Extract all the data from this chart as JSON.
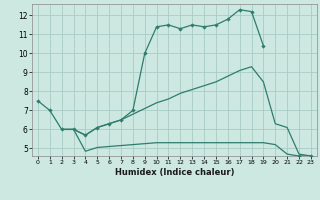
{
  "xlabel": "Humidex (Indice chaleur)",
  "xlim": [
    -0.5,
    23.5
  ],
  "ylim": [
    4.6,
    12.6
  ],
  "yticks": [
    5,
    6,
    7,
    8,
    9,
    10,
    11,
    12
  ],
  "xticks": [
    0,
    1,
    2,
    3,
    4,
    5,
    6,
    7,
    8,
    9,
    10,
    11,
    12,
    13,
    14,
    15,
    16,
    17,
    18,
    19,
    20,
    21,
    22,
    23
  ],
  "bg_color": "#cce8e0",
  "grid_color": "#aaccC4",
  "line_color": "#2e7d6e",
  "curve1_x": [
    0,
    1,
    2,
    3,
    4,
    5,
    6,
    7,
    8,
    9,
    10,
    11,
    12,
    13,
    14,
    15,
    16,
    17,
    18,
    19
  ],
  "curve1_y": [
    7.5,
    7.0,
    6.0,
    6.0,
    5.7,
    6.1,
    6.3,
    6.5,
    7.0,
    10.0,
    11.4,
    11.5,
    11.3,
    11.5,
    11.4,
    11.5,
    11.8,
    12.3,
    12.2,
    10.4
  ],
  "curve2_x": [
    2,
    3,
    4,
    5,
    6,
    7,
    8,
    9,
    10,
    11,
    12,
    13,
    14,
    15,
    16,
    17,
    18,
    19,
    20,
    21,
    22,
    23
  ],
  "curve2_y": [
    6.0,
    6.0,
    5.7,
    6.1,
    6.3,
    6.5,
    6.8,
    7.1,
    7.4,
    7.6,
    7.9,
    8.1,
    8.3,
    8.5,
    8.8,
    9.1,
    9.3,
    8.5,
    6.3,
    6.1,
    4.7,
    4.6
  ],
  "curve3_x": [
    2,
    3,
    4,
    5,
    6,
    7,
    8,
    9,
    10,
    11,
    12,
    13,
    14,
    15,
    16,
    17,
    18,
    19,
    20,
    21,
    22,
    23
  ],
  "curve3_y": [
    6.0,
    6.0,
    4.85,
    5.05,
    5.1,
    5.15,
    5.2,
    5.25,
    5.3,
    5.3,
    5.3,
    5.3,
    5.3,
    5.3,
    5.3,
    5.3,
    5.3,
    5.3,
    5.2,
    4.7,
    4.6,
    4.6
  ],
  "marker_x": [
    0,
    1,
    2,
    3,
    4,
    5,
    6,
    7,
    8,
    9,
    10,
    11,
    12,
    13,
    14,
    15,
    16,
    17,
    18,
    19,
    22,
    23
  ],
  "marker_y": [
    7.5,
    7.0,
    6.0,
    6.0,
    5.7,
    6.1,
    6.3,
    6.5,
    7.0,
    10.0,
    11.4,
    11.5,
    11.3,
    11.5,
    11.4,
    11.5,
    11.8,
    12.3,
    12.2,
    10.4,
    4.6,
    4.6
  ]
}
